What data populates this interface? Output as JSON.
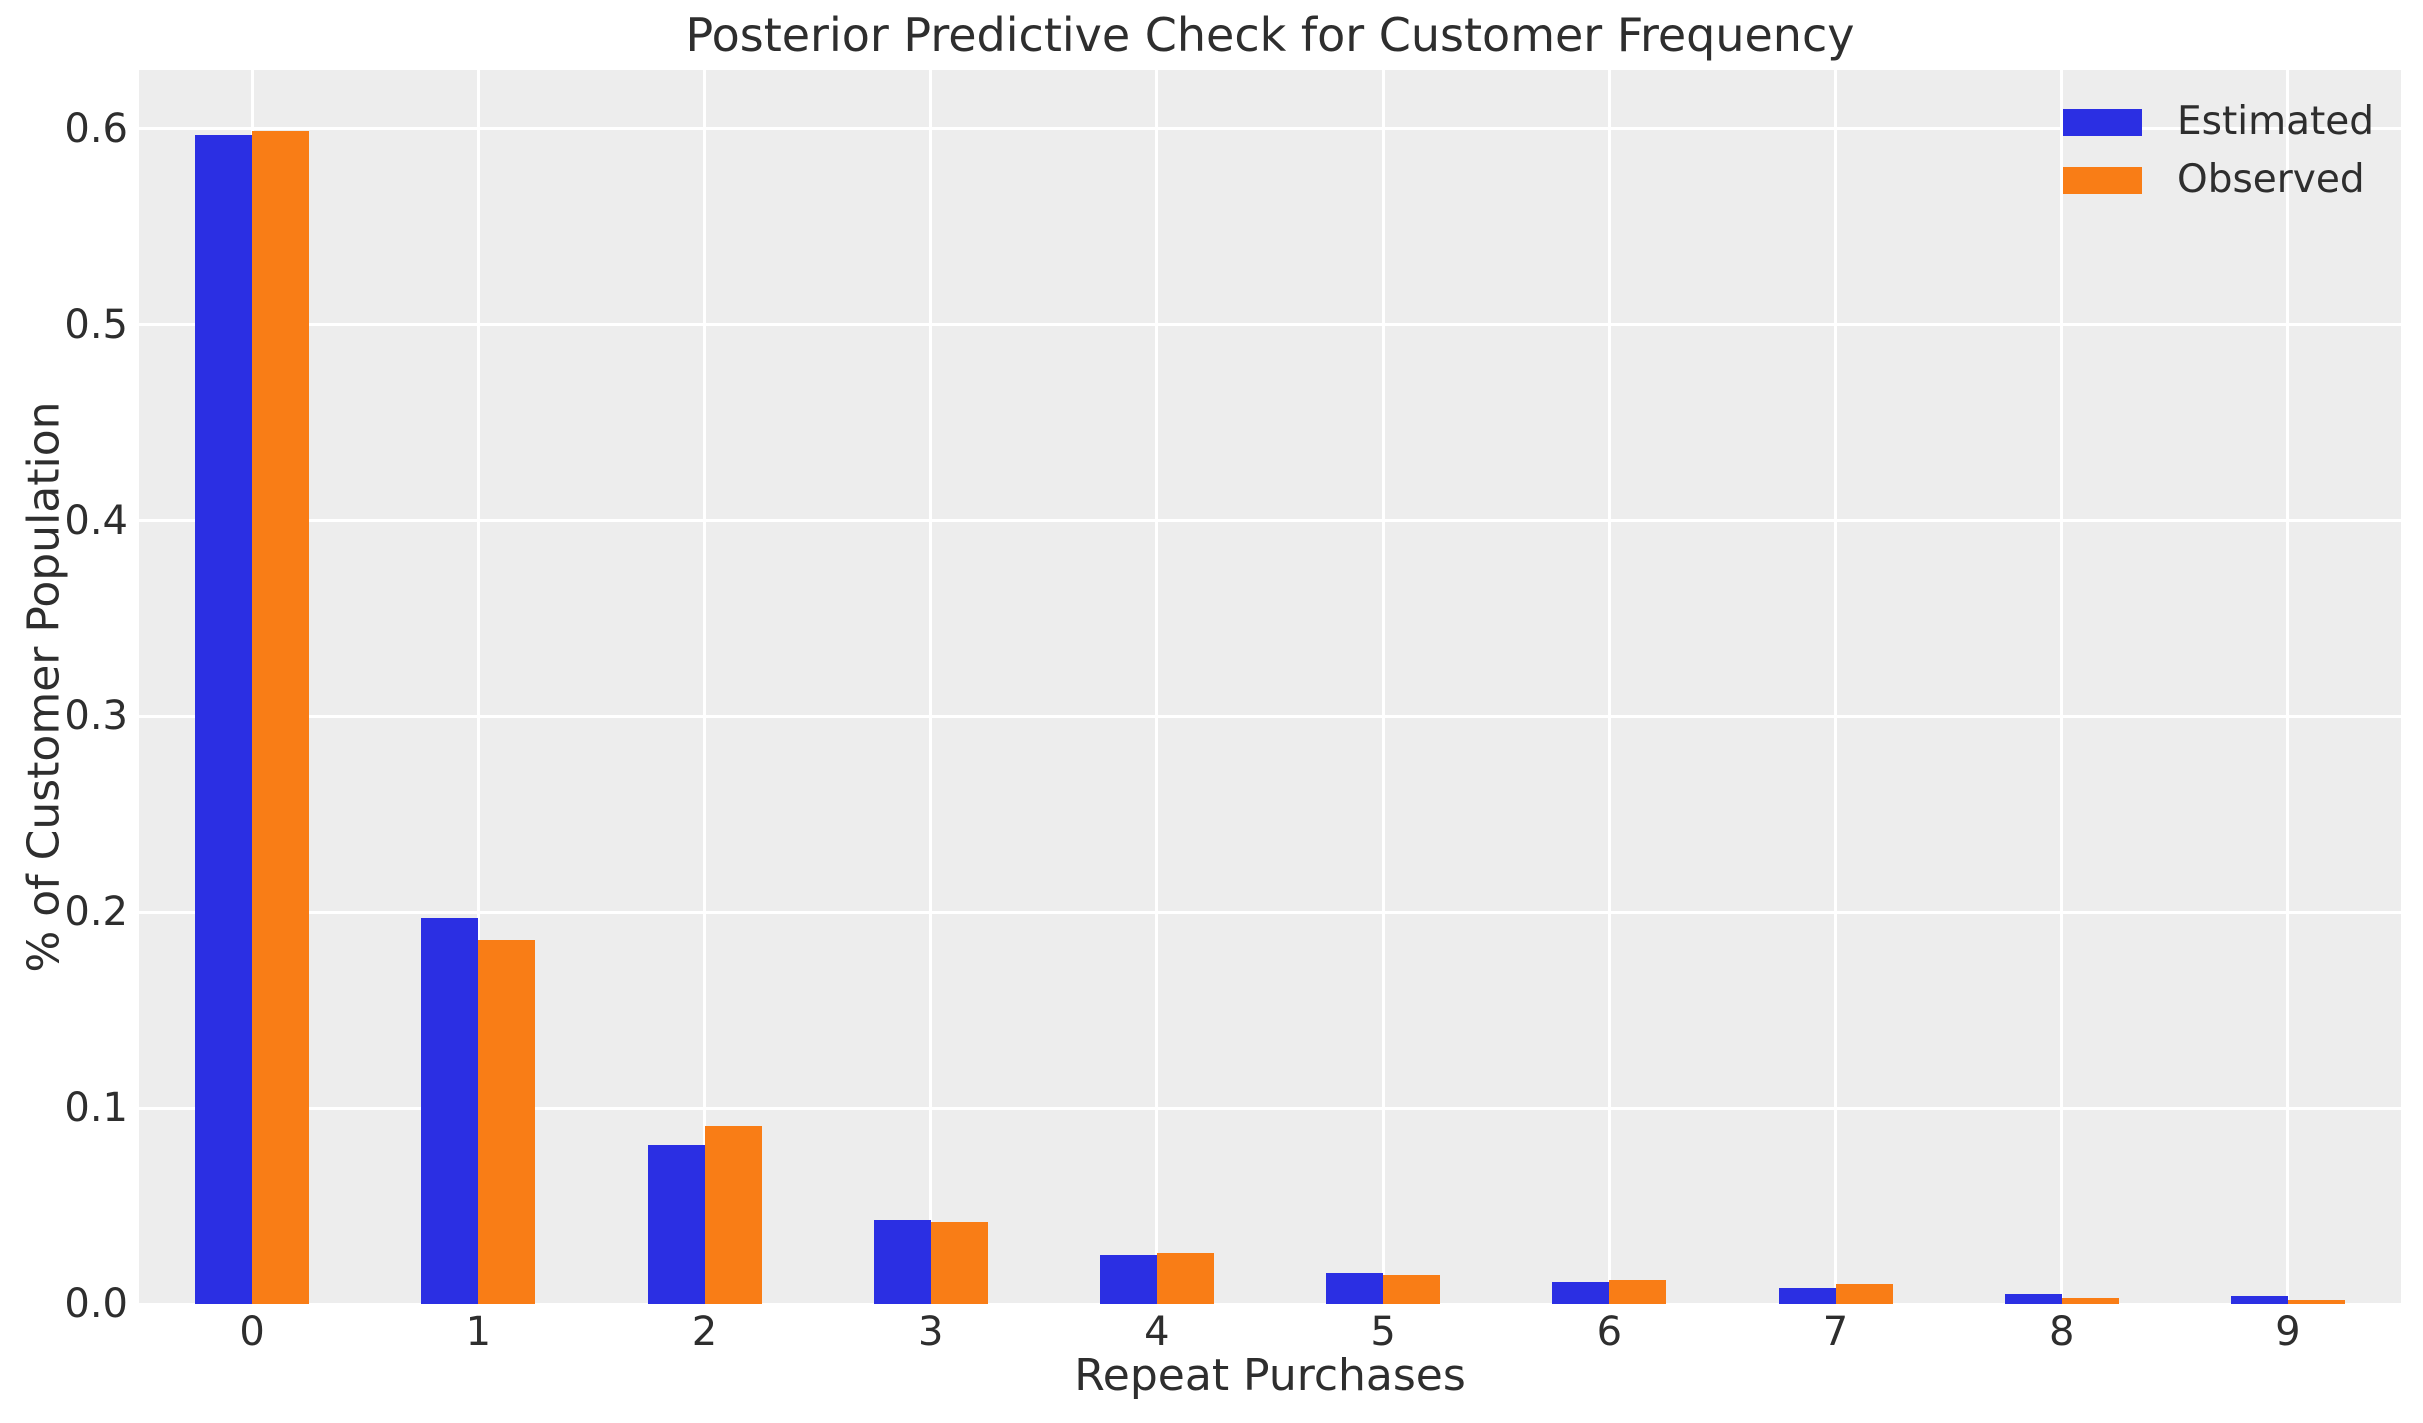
{
  "chart_data": {
    "type": "bar",
    "title": "Posterior Predictive Check for Customer Frequency",
    "xlabel": "Repeat Purchases",
    "ylabel": "% of Customer Population",
    "categories": [
      "0",
      "1",
      "2",
      "3",
      "4",
      "5",
      "6",
      "7",
      "8",
      "9"
    ],
    "series": [
      {
        "name": "Estimated",
        "color": "#2B2FE3",
        "values": [
          0.597,
          0.197,
          0.081,
          0.043,
          0.025,
          0.016,
          0.011,
          0.008,
          0.005,
          0.004
        ]
      },
      {
        "name": "Observed",
        "color": "#F97D16",
        "values": [
          0.599,
          0.186,
          0.091,
          0.042,
          0.026,
          0.015,
          0.012,
          0.01,
          0.003,
          0.002
        ]
      }
    ],
    "ylim": [
      0,
      0.63
    ],
    "yticks": [
      0.0,
      0.1,
      0.2,
      0.3,
      0.4,
      0.5,
      0.6
    ],
    "grid": true,
    "legend_position": "upper right",
    "plot_bg": "#EDEDED",
    "grid_color": "#FFFFFF",
    "text_color": "#2E2E2E"
  }
}
